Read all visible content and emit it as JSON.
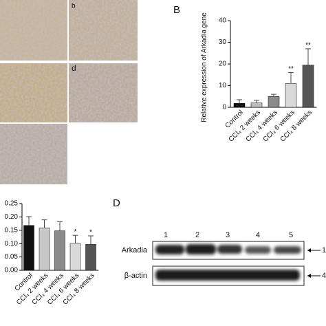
{
  "chart_data": [
    {
      "type": "bar",
      "y_label": "Relative expression of Arkadia gene",
      "categories": [
        "Control",
        "CCl₄ 2 weeks",
        "CCl₄ 4 weeks",
        "CCl₄ 6 weeks",
        "CCl₄ 8 weeks"
      ],
      "values": [
        1.8,
        2.0,
        5.0,
        11.0,
        19.5
      ],
      "errors": [
        1.7,
        1.2,
        1.0,
        5.0,
        7.5
      ],
      "colors": [
        "#111111",
        "#bdbdbd",
        "#8a8a8a",
        "#d9d9d9",
        "#555555"
      ],
      "annotations": [
        null,
        null,
        null,
        "**",
        "**"
      ],
      "ylim": [
        0,
        40
      ],
      "yticks": [
        0,
        10,
        20,
        30,
        40
      ]
    },
    {
      "type": "bar",
      "categories": [
        "Control",
        "CCl₄ 2 weeks",
        "CCl₄ 4 weeks",
        "CCl₄ 6 weeks",
        "CCl₄ 8 weeks"
      ],
      "values": [
        0.168,
        0.159,
        0.148,
        0.101,
        0.097
      ],
      "errors": [
        0.033,
        0.03,
        0.034,
        0.03,
        0.032
      ],
      "colors": [
        "#111111",
        "#c8c8c8",
        "#8a8a8a",
        "#d9d9d9",
        "#555555"
      ],
      "annotations": [
        null,
        null,
        null,
        "*",
        "*"
      ],
      "ylim": [
        0,
        0.25
      ],
      "yticks": [
        {
          "value": 0,
          "label": "0.00"
        },
        {
          "value": 0.05,
          "label": "0.05"
        },
        {
          "value": 0.1,
          "label": "0.10"
        },
        {
          "value": 0.15,
          "label": "0.15"
        },
        {
          "value": 0.2,
          "label": "0.20"
        },
        {
          "value": 0.25,
          "label": "0.25"
        }
      ]
    }
  ],
  "panel_labels": {
    "B": "B",
    "D": "D",
    "b": "b",
    "d": "d"
  },
  "blot": {
    "lanes": [
      "1",
      "2",
      "3",
      "4",
      "5"
    ],
    "rows": [
      "Arkadia",
      "β-actin"
    ],
    "markers": [
      "1",
      "4"
    ]
  }
}
